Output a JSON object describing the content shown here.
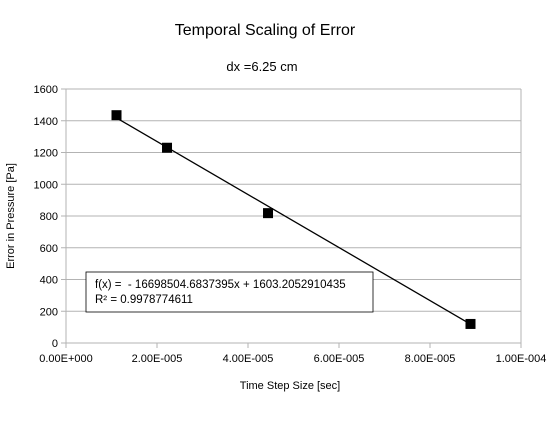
{
  "chart_data": {
    "type": "scatter",
    "title": "Temporal Scaling of Error",
    "subtitle": "dx =6.25 cm",
    "xlabel": "Time Step Size [sec]",
    "ylabel": "Error in Pressure [Pa]",
    "xlim": [
      0,
      0.0001
    ],
    "ylim": [
      0,
      1600
    ],
    "x_ticks": [
      0,
      2e-05,
      4e-05,
      6e-05,
      8e-05,
      0.0001
    ],
    "x_tick_labels": [
      "0.00E+000",
      "2.00E-005",
      "4.00E-005",
      "6.00E-005",
      "8.00E-005",
      "1.00E-004"
    ],
    "y_ticks": [
      0,
      200,
      400,
      600,
      800,
      1000,
      1200,
      1400,
      1600
    ],
    "y_tick_labels": [
      "0",
      "200",
      "400",
      "600",
      "800",
      "1000",
      "1200",
      "1400",
      "1600"
    ],
    "grid": {
      "horizontal": true,
      "vertical": false
    },
    "series": [
      {
        "points": [
          {
            "x": 1.11e-05,
            "y": 1435
          },
          {
            "x": 2.22e-05,
            "y": 1230
          },
          {
            "x": 4.44e-05,
            "y": 818
          },
          {
            "x": 8.89e-05,
            "y": 120
          }
        ],
        "marker": "square",
        "color": "#000000"
      }
    ],
    "trendline": {
      "type": "linear",
      "slope": -16698504.6837395,
      "intercept": 1603.2052910435,
      "x_range": [
        1.11e-05,
        8.89e-05
      ],
      "equation_text": "f(x) =  - 16698504.6837395x + 1603.2052910435",
      "r2_text": "R² = 0.9978774611"
    },
    "colors": {
      "grid": "#b3b3b3",
      "axis": "#b3b3b3",
      "marker": "#000000",
      "trendline": "#000000"
    }
  }
}
